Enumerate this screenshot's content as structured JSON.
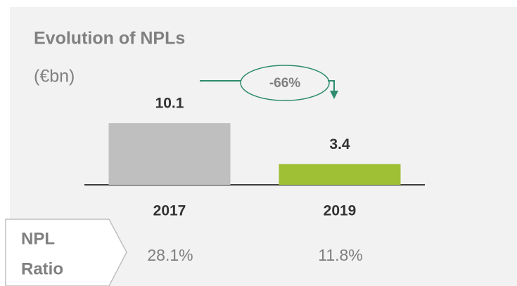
{
  "chart_data": {
    "type": "bar",
    "title": "Evolution of NPLs",
    "subtitle": "(€bn)",
    "categories": [
      "2017",
      "2019"
    ],
    "values": [
      10.1,
      3.4
    ],
    "colors": [
      "#bfbfbf",
      "#9fbf35"
    ],
    "annotation": "-66%",
    "npl_ratio": {
      "label_lines": [
        "NPL",
        "Ratio"
      ],
      "values": [
        28.1,
        11.8
      ],
      "value_labels": [
        "28.1%",
        "11.8%"
      ]
    }
  }
}
